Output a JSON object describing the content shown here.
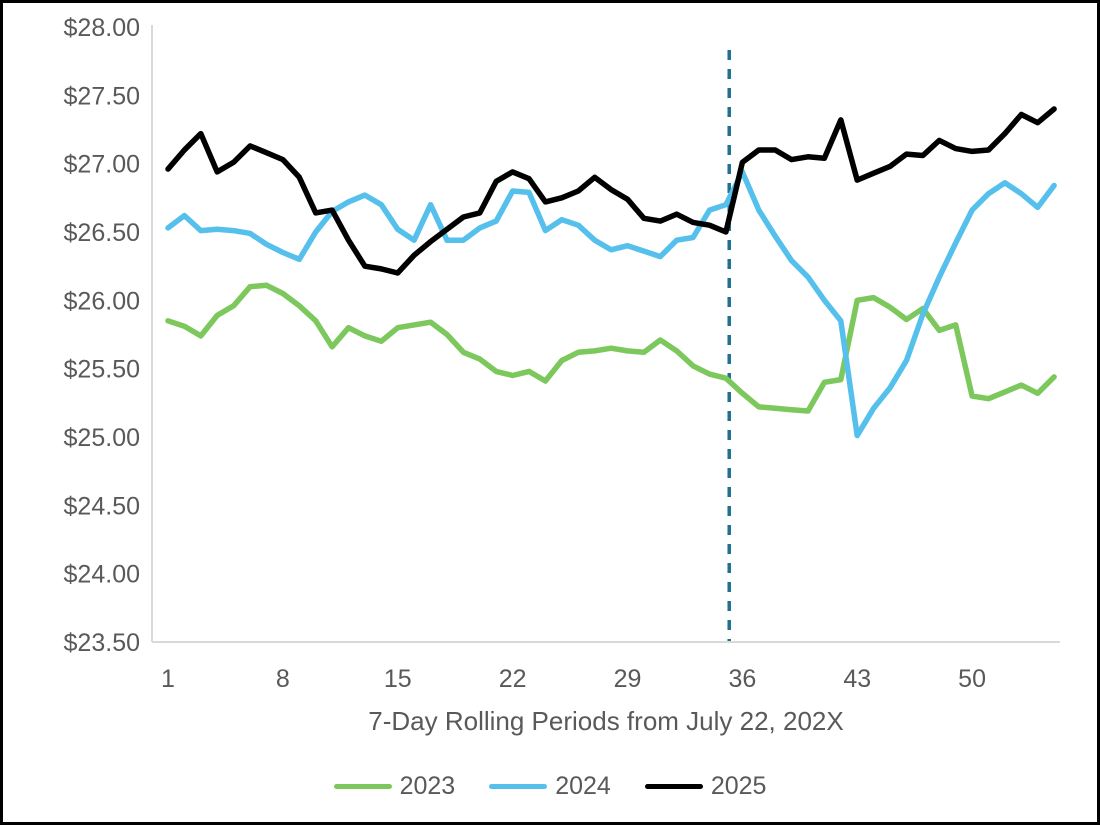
{
  "chart_data": {
    "type": "line",
    "title": "",
    "xlabel": "7-Day Rolling Periods from July 22, 202X",
    "ylabel": "",
    "ylim": [
      23.5,
      28.0
    ],
    "ytick_step": 0.5,
    "ytick_labels": [
      "$28.00",
      "$27.50",
      "$27.00",
      "$26.50",
      "$26.00",
      "$25.50",
      "$25.00",
      "$24.50",
      "$24.00",
      "$23.50"
    ],
    "xticks": [
      1,
      8,
      15,
      22,
      29,
      36,
      43,
      50
    ],
    "x_range": [
      1,
      55
    ],
    "grid": false,
    "legend_position": "bottom",
    "axis_color": "#D9D9D9",
    "text_color": "#595959",
    "annotation": {
      "type": "vertical-dashed-line",
      "x_period": 35.2,
      "color": "#21708F"
    },
    "series": [
      {
        "name": "2023",
        "color": "#7CC85C",
        "values": [
          25.85,
          25.81,
          25.74,
          25.89,
          25.96,
          26.1,
          26.11,
          26.05,
          25.96,
          25.85,
          25.66,
          25.8,
          25.74,
          25.7,
          25.8,
          25.82,
          25.84,
          25.75,
          25.62,
          25.57,
          25.48,
          25.45,
          25.48,
          25.41,
          25.56,
          25.62,
          25.63,
          25.65,
          25.63,
          25.62,
          25.71,
          25.63,
          25.52,
          25.46,
          25.43,
          25.32,
          25.22,
          25.21,
          25.2,
          25.19,
          25.4,
          25.42,
          26.0,
          26.02,
          25.95,
          25.86,
          25.94,
          25.78,
          25.82,
          25.3,
          25.28,
          25.33,
          25.38,
          25.32,
          25.44
        ]
      },
      {
        "name": "2024",
        "color": "#55C0EB",
        "values": [
          26.53,
          26.62,
          26.51,
          26.52,
          26.51,
          26.49,
          26.41,
          26.35,
          26.3,
          26.5,
          26.65,
          26.72,
          26.77,
          26.7,
          26.52,
          26.44,
          26.7,
          26.44,
          26.44,
          26.53,
          26.58,
          26.8,
          26.79,
          26.51,
          26.59,
          26.55,
          26.44,
          26.37,
          26.4,
          26.36,
          26.32,
          26.44,
          26.46,
          26.66,
          26.7,
          26.94,
          26.66,
          26.47,
          26.29,
          26.17,
          26.0,
          25.85,
          25.01,
          25.21,
          25.36,
          25.56,
          25.9,
          26.17,
          26.42,
          26.66,
          26.78,
          26.86,
          26.78,
          26.68,
          26.84
        ]
      },
      {
        "name": "2025",
        "color": "#000000",
        "values": [
          26.96,
          27.1,
          27.22,
          26.94,
          27.01,
          27.13,
          27.08,
          27.03,
          26.9,
          26.64,
          26.66,
          26.44,
          26.25,
          26.23,
          26.2,
          26.33,
          26.43,
          26.52,
          26.61,
          26.64,
          26.87,
          26.94,
          26.89,
          26.72,
          26.75,
          26.8,
          26.9,
          26.81,
          26.74,
          26.6,
          26.58,
          26.63,
          26.57,
          26.55,
          26.5,
          27.01,
          27.1,
          27.1,
          27.03,
          27.05,
          27.04,
          27.32,
          26.88,
          26.93,
          26.98,
          27.07,
          27.06,
          27.17,
          27.11,
          27.09,
          27.1,
          27.22,
          27.36,
          27.3,
          27.4
        ]
      }
    ]
  }
}
